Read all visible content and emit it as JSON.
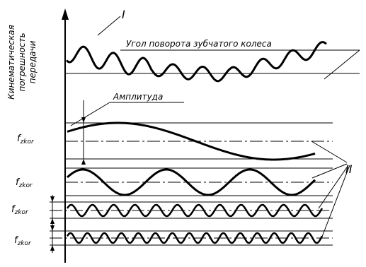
{
  "labels": {
    "y_axis_lines": [
      "Кинематическая",
      "погрешность",
      "передачи"
    ],
    "marker_1": "I",
    "marker_2": "II",
    "wheel_angle": "Угол поворота зубчатого колеса",
    "amplitude": "Амплитуда",
    "harmonics": [
      {
        "main": "f",
        "sub": "zkor"
      },
      {
        "main": "f",
        "sub": "zkor"
      },
      {
        "main": "f",
        "sub": "zkor"
      },
      {
        "main": "f",
        "sub": "zkor"
      }
    ]
  }
}
